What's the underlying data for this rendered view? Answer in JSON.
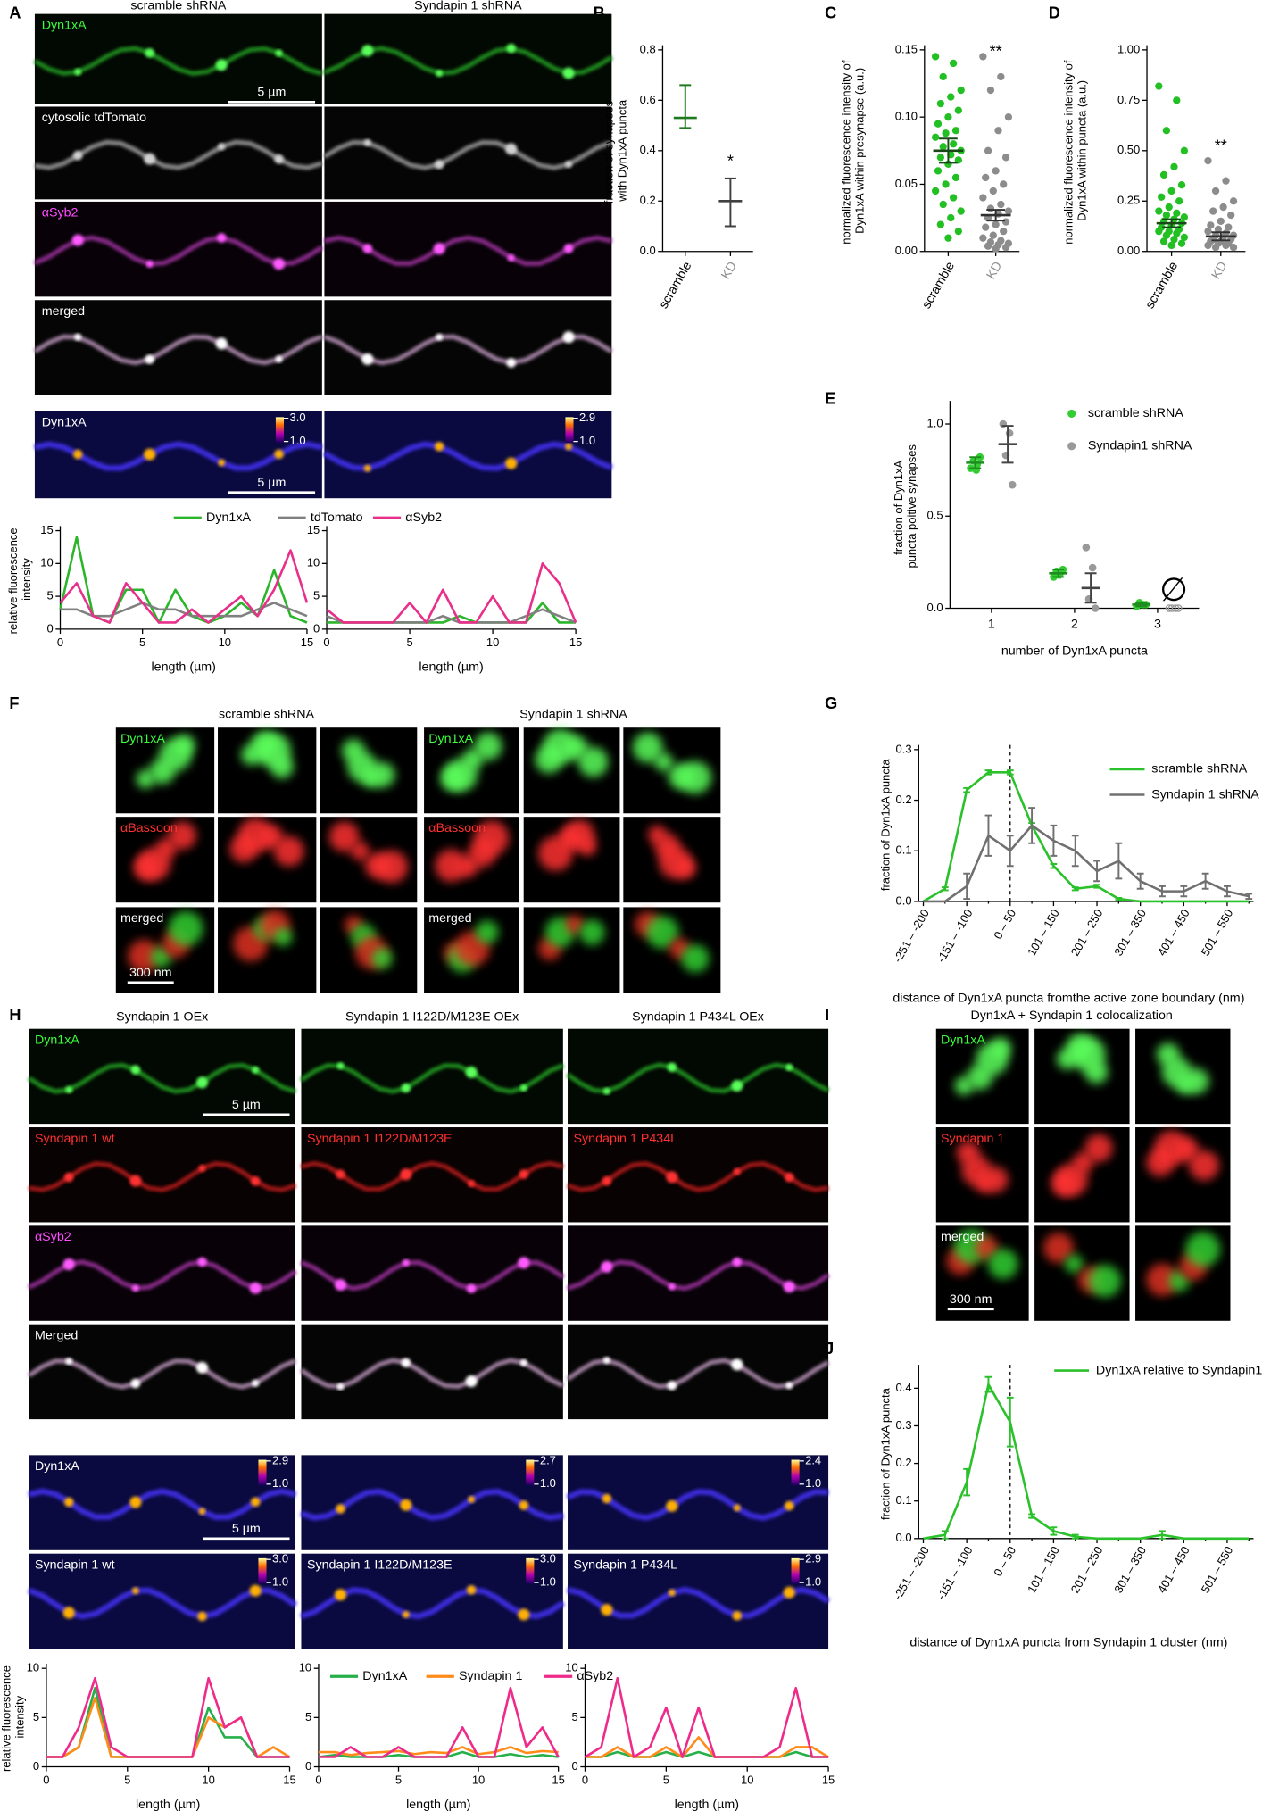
{
  "panels": {
    "letters": [
      "A",
      "B",
      "C",
      "D",
      "E",
      "F",
      "G",
      "H",
      "I",
      "J"
    ],
    "A": {
      "columns": [
        "scramble shRNA",
        "Syndapin 1 shRNA"
      ],
      "rows": [
        "Dyn1xA",
        "cytosolic tdTomato",
        "αSyb2",
        "merged",
        "Dyn1xA"
      ],
      "scale_bar": "5 µm",
      "heat_max": [
        "3.0",
        "2.9"
      ],
      "heat_min": "1.0"
    },
    "F": {
      "groups": [
        "scramble shRNA",
        "Syndapin 1 shRNA"
      ],
      "rows": [
        "Dyn1xA",
        "αBassoon",
        "merged"
      ],
      "scale_bar": "300 nm"
    },
    "H": {
      "columns": [
        "Syndapin 1 OEx",
        "Syndapin 1 I122D/M123E OEx",
        "Syndapin 1 P434L OEx"
      ],
      "row_dyn": "Dyn1xA",
      "row_syn": [
        "Syndapin 1 wt",
        "Syndapin 1 I122D/M123E",
        "Syndapin 1 P434L"
      ],
      "row_syb": "αSyb2",
      "row_merged": "Merged",
      "scale_bar": "5 µm",
      "heat_max": [
        "2.9",
        "2.7",
        "2.4",
        "3.0",
        "3.0",
        "2.9"
      ],
      "heat_min": "1.0"
    },
    "I": {
      "title": "Dyn1xA + Syndapin 1 colocalization",
      "rows": [
        "Dyn1xA",
        "Syndapin 1",
        "merged"
      ],
      "scale_bar": "300 nm"
    }
  },
  "chart_data": [
    {
      "type": "line",
      "ylabel": "relative fluorescence intensity",
      "xlabel": "length (µm)",
      "legend": true,
      "x": [
        0,
        1,
        2,
        3,
        4,
        5,
        6,
        7,
        8,
        9,
        10,
        11,
        12,
        13,
        14,
        15
      ],
      "xlim": [
        0,
        15
      ],
      "xticks": [
        0,
        5,
        10,
        15
      ],
      "ylim": [
        0,
        15
      ],
      "yticks": [
        0,
        5,
        10,
        15
      ],
      "series": [
        {
          "name": "Dyn1xA",
          "color": "#2ab52a",
          "values": [
            3,
            14,
            2,
            1,
            6,
            6,
            1,
            6,
            2,
            1,
            2,
            4,
            2,
            9,
            2,
            1
          ]
        },
        {
          "name": "tdTomato",
          "color": "#808080",
          "values": [
            3,
            3,
            2,
            2,
            3,
            4,
            3,
            3,
            2,
            2,
            2,
            2,
            3,
            4,
            3,
            2
          ]
        },
        {
          "name": "αSyb2",
          "color": "#e8308a",
          "values": [
            4,
            7,
            2,
            1,
            7,
            4,
            1,
            1,
            3,
            1,
            3,
            5,
            2,
            6,
            12,
            4
          ]
        }
      ]
    },
    {
      "type": "line",
      "xlabel": "length (µm)",
      "x": [
        0,
        1,
        2,
        3,
        4,
        5,
        6,
        7,
        8,
        9,
        10,
        11,
        12,
        13,
        14,
        15
      ],
      "xlim": [
        0,
        15
      ],
      "xticks": [
        0,
        5,
        10,
        15
      ],
      "ylim": [
        0,
        15
      ],
      "yticks": [
        0,
        5,
        10,
        15
      ],
      "series": [
        {
          "color": "#2ab52a",
          "values": [
            1,
            1,
            1,
            1,
            1,
            1,
            1,
            1,
            2,
            1,
            1,
            1,
            1,
            4,
            1,
            1
          ]
        },
        {
          "color": "#808080",
          "values": [
            2,
            1,
            1,
            1,
            1,
            1,
            1,
            2,
            1,
            1,
            1,
            1,
            2,
            3,
            2,
            1
          ]
        },
        {
          "color": "#e8308a",
          "values": [
            3,
            1,
            1,
            1,
            1,
            4,
            1,
            6,
            1,
            1,
            5,
            1,
            1,
            10,
            7,
            1
          ]
        }
      ]
    },
    {
      "type": "errorbar",
      "ylabel": "fraction of synapses with Dyn1xA puncta",
      "categories": [
        "scramble",
        "KD"
      ],
      "values": [
        0.53,
        0.2
      ],
      "lower": [
        0.49,
        0.1
      ],
      "upper": [
        0.66,
        0.29
      ],
      "colors": [
        "#1f7a1f",
        "#404040"
      ],
      "label_colors": [
        "#000000",
        "#909090"
      ],
      "ylim": [
        0,
        0.8
      ],
      "yticks": [
        {
          "value": 0,
          "label": "0.0"
        },
        0.2,
        0.4,
        0.6,
        0.8
      ],
      "annotation": "*"
    },
    {
      "type": "dotplot",
      "ylabel": "normalized fluorescence intensity of Dyn1xA within presynapse (a.u.)",
      "categories": [
        "scramble",
        "KD"
      ],
      "points": [
        [
          0.145,
          0.14,
          0.13,
          0.12,
          0.115,
          0.11,
          0.105,
          0.1,
          0.095,
          0.09,
          0.088,
          0.085,
          0.08,
          0.078,
          0.075,
          0.072,
          0.07,
          0.068,
          0.065,
          0.06,
          0.055,
          0.05,
          0.045,
          0.04,
          0.035,
          0.03,
          0.025,
          0.02,
          0.015,
          0.01
        ],
        [
          0.145,
          0.13,
          0.12,
          0.1,
          0.09,
          0.075,
          0.07,
          0.06,
          0.055,
          0.05,
          0.045,
          0.04,
          0.035,
          0.032,
          0.03,
          0.028,
          0.025,
          0.022,
          0.02,
          0.018,
          0.015,
          0.012,
          0.01,
          0.008,
          0.007,
          0.006,
          0.005,
          0.004,
          0.003,
          0.002
        ]
      ],
      "values": [
        0.075,
        0.027
      ],
      "errors": [
        0.009,
        0.004
      ],
      "colors": [
        "#22c022",
        "#8c8c8c"
      ],
      "mean_colors": [
        "#184818",
        "#303030"
      ],
      "label_colors": [
        "#000000",
        "#909090"
      ],
      "ylim": [
        0,
        0.15
      ],
      "yticks": [
        {
          "value": 0,
          "label": "0.00"
        },
        0.05,
        {
          "value": 0.1,
          "label": "0.10"
        },
        0.15
      ],
      "annotation": "**"
    },
    {
      "type": "dotplot",
      "ylabel": "normalized fluorescence intensity of Dyn1xA within puncta (a.u.)",
      "categories": [
        "scramble",
        "KD"
      ],
      "points": [
        [
          0.82,
          0.75,
          0.6,
          0.5,
          0.42,
          0.38,
          0.33,
          0.3,
          0.27,
          0.25,
          0.22,
          0.2,
          0.19,
          0.18,
          0.17,
          0.16,
          0.15,
          0.14,
          0.13,
          0.12,
          0.11,
          0.1,
          0.1,
          0.09,
          0.08,
          0.07,
          0.06,
          0.05,
          0.04,
          0.03
        ],
        [
          0.45,
          0.35,
          0.3,
          0.25,
          0.22,
          0.2,
          0.18,
          0.15,
          0.13,
          0.12,
          0.11,
          0.1,
          0.09,
          0.08,
          0.08,
          0.07,
          0.06,
          0.06,
          0.05,
          0.05,
          0.04,
          0.04,
          0.03,
          0.03,
          0.02,
          0.02
        ]
      ],
      "values": [
        0.14,
        0.075
      ],
      "errors": [
        0.02,
        0.02
      ],
      "colors": [
        "#22c022",
        "#8c8c8c"
      ],
      "mean_colors": [
        "#184818",
        "#303030"
      ],
      "label_colors": [
        "#000000",
        "#909090"
      ],
      "ylim": [
        0,
        1
      ],
      "yticks": [
        {
          "value": 0,
          "label": "0.00"
        },
        0.25,
        {
          "value": 0.5,
          "label": "0.50"
        },
        0.75,
        {
          "value": 1,
          "label": "1.00"
        }
      ],
      "annotation": "**"
    },
    {
      "type": "groupdot",
      "ylabel": "fraction of Dyn1xA puncta poitive synapses",
      "xlabel": "number of Dyn1xA puncta",
      "categories": [
        "1",
        "2",
        "3"
      ],
      "ylim": [
        0,
        1.1
      ],
      "yticks": [
        {
          "value": 0,
          "label": "0.0"
        },
        {
          "value": 0.5,
          "label": "0.5"
        },
        {
          "value": 1,
          "label": "1.0"
        }
      ],
      "series": [
        {
          "name": "scramble shRNA",
          "color": "#33cc33",
          "bar_color": "#1e8c1e",
          "values": [
            0.79,
            0.19,
            0.02
          ],
          "errors": [
            0.03,
            0.02,
            0.01
          ],
          "points": [
            [
              0.76,
              0.78,
              0.8,
              0.82,
              0.75
            ],
            [
              0.17,
              0.19,
              0.2,
              0.21,
              0.18
            ],
            [
              0.01,
              0.02,
              0.03,
              0.02,
              0.02
            ]
          ]
        },
        {
          "name": "Syndapin1 shRNA",
          "color": "#999999",
          "bar_color": "#444444",
          "values": [
            0.89,
            0.11,
            null
          ],
          "errors": [
            0.1,
            0.08,
            null
          ],
          "points": [
            [
              1.0,
              0.95,
              0.83,
              0.67
            ],
            [
              0.33,
              0.22,
              0.05,
              0.0
            ],
            [
              0,
              0,
              0,
              0
            ]
          ],
          "annotation": "∅"
        }
      ]
    },
    {
      "type": "lineerr",
      "ylabel": "fraction of Dyn1xA puncta",
      "xlabel": "distance of Dyn1xA puncta fromthe active zone boundary (nm)",
      "categories": [
        "-251 – -200",
        null,
        "-151 – -100",
        null,
        "0 – 50",
        null,
        "101 – 150",
        null,
        "201 – 250",
        null,
        "301 – 350",
        null,
        "401 – 450",
        null,
        "501 – 550",
        null
      ],
      "reference_index": 4,
      "ylim": [
        0,
        0.3
      ],
      "yticks": [
        {
          "value": 0,
          "label": "0.0"
        },
        0.1,
        0.2,
        0.3
      ],
      "series": [
        {
          "name": "scramble shRNA",
          "color": "#2bc12b",
          "values": [
            0,
            0.025,
            0.22,
            0.255,
            0.255,
            0.15,
            0.07,
            0.025,
            0.03,
            0.005,
            0,
            0,
            0,
            0,
            0,
            0
          ],
          "errors": [
            0,
            0.003,
            0.004,
            0.004,
            0.004,
            0.005,
            0.004,
            0.003,
            0.003,
            0.002,
            0,
            0,
            0,
            0,
            0,
            0
          ]
        },
        {
          "name": "Syndapin 1 shRNA",
          "color": "#707070",
          "values": [
            0,
            0,
            0.03,
            0.13,
            0.1,
            0.15,
            0.12,
            0.1,
            0.06,
            0.08,
            0.04,
            0.02,
            0.02,
            0.04,
            0.02,
            0.01
          ],
          "errors": [
            0,
            0,
            0.025,
            0.04,
            0.03,
            0.035,
            0.03,
            0.03,
            0.02,
            0.035,
            0.015,
            0.01,
            0.01,
            0.015,
            0.01,
            0.005
          ]
        }
      ]
    },
    {
      "type": "line",
      "ylabel": "relative fluorescence intensity",
      "xlabel": "length (µm)",
      "legend": true,
      "x": [
        0,
        1,
        2,
        3,
        4,
        5,
        6,
        7,
        8,
        9,
        10,
        11,
        12,
        13,
        14,
        15
      ],
      "xlim": [
        0,
        15
      ],
      "xticks": [
        0,
        5,
        10,
        15
      ],
      "ylim": [
        0,
        10
      ],
      "yticks": [
        0,
        5,
        10
      ],
      "series": [
        {
          "name": "Dyn1xA",
          "color": "#27b04a",
          "values": [
            1,
            1,
            2,
            8,
            1,
            1,
            1,
            1,
            1,
            1,
            6,
            3,
            3,
            1,
            1,
            1
          ]
        },
        {
          "name": "Syndapin 1",
          "color": "#ff8c1a",
          "values": [
            1,
            1,
            2,
            7,
            1,
            1,
            1,
            1,
            1,
            1,
            5,
            4,
            5,
            1,
            2,
            1
          ]
        },
        {
          "name": "αSyb2",
          "color": "#ee2a8a",
          "values": [
            1,
            1,
            4,
            9,
            2,
            1,
            1,
            1,
            1,
            1,
            9,
            4,
            5,
            1,
            1,
            1
          ]
        }
      ]
    },
    {
      "type": "line",
      "xlabel": "length (µm)",
      "x": [
        0,
        1,
        2,
        3,
        4,
        5,
        6,
        7,
        8,
        9,
        10,
        11,
        12,
        13,
        14,
        15
      ],
      "xlim": [
        0,
        15
      ],
      "xticks": [
        0,
        5,
        10,
        15
      ],
      "ylim": [
        0,
        10
      ],
      "yticks": [
        0,
        5,
        10
      ],
      "series": [
        {
          "color": "#27b04a",
          "values": [
            1,
            1.2,
            1,
            1,
            1,
            1.2,
            1,
            1,
            1,
            1.5,
            1,
            1,
            1.3,
            1,
            1.2,
            1
          ]
        },
        {
          "color": "#ff8c1a",
          "values": [
            1.5,
            1.5,
            1.2,
            1.4,
            1.5,
            1.6,
            1.3,
            1.5,
            1.4,
            2,
            1.3,
            1.5,
            2,
            1.4,
            1.6,
            1.5
          ]
        },
        {
          "color": "#ee2a8a",
          "values": [
            1,
            1,
            2,
            1,
            1,
            2,
            1,
            1,
            1,
            4,
            1,
            1,
            8,
            2,
            4,
            1
          ]
        }
      ]
    },
    {
      "type": "line",
      "xlabel": "length (µm)",
      "x": [
        0,
        1,
        2,
        3,
        4,
        5,
        6,
        7,
        8,
        9,
        10,
        11,
        12,
        13,
        14,
        15
      ],
      "xlim": [
        0,
        15
      ],
      "xticks": [
        0,
        5,
        10,
        15
      ],
      "ylim": [
        0,
        10
      ],
      "yticks": [
        0,
        5,
        10
      ],
      "series": [
        {
          "color": "#27b04a",
          "values": [
            1,
            1,
            1.5,
            1,
            1,
            1.5,
            1,
            1.5,
            1,
            1,
            1,
            1,
            1,
            1.5,
            1,
            1
          ]
        },
        {
          "color": "#ff8c1a",
          "values": [
            1,
            1,
            2,
            1,
            1,
            2,
            1,
            3,
            1,
            1,
            1,
            1,
            1,
            2,
            2,
            1
          ]
        },
        {
          "color": "#ee2a8a",
          "values": [
            1,
            2,
            9,
            1,
            2,
            6,
            1,
            6,
            1,
            1,
            1,
            1,
            2,
            8,
            1,
            1
          ]
        }
      ]
    },
    {
      "type": "lineerr",
      "ylabel": "fraction of Dyn1xA puncta",
      "xlabel": "distance of Dyn1xA puncta from Syndapin 1 cluster (nm)",
      "categories": [
        "-251 – -200",
        null,
        "-151 – -100",
        null,
        "0 – 50",
        null,
        "101 – 150",
        null,
        "201 – 250",
        null,
        "301 – 350",
        null,
        "401 – 450",
        null,
        "501 – 550",
        null
      ],
      "reference_index": 4,
      "ylim": [
        0,
        0.45
      ],
      "yticks": [
        {
          "value": 0,
          "label": "0.0"
        },
        0.1,
        0.2,
        0.3,
        0.4
      ],
      "series": [
        {
          "name": "Dyn1xA relative to Syndapin1",
          "color": "#2bc12b",
          "values": [
            0,
            0.01,
            0.15,
            0.41,
            0.31,
            0.06,
            0.02,
            0.005,
            0,
            0,
            0,
            0.01,
            0,
            0,
            0,
            0
          ],
          "errors": [
            0,
            0.01,
            0.035,
            0.02,
            0.065,
            0.005,
            0.01,
            0.005,
            0,
            0,
            0,
            0.01,
            0,
            0,
            0,
            0
          ]
        }
      ]
    }
  ]
}
